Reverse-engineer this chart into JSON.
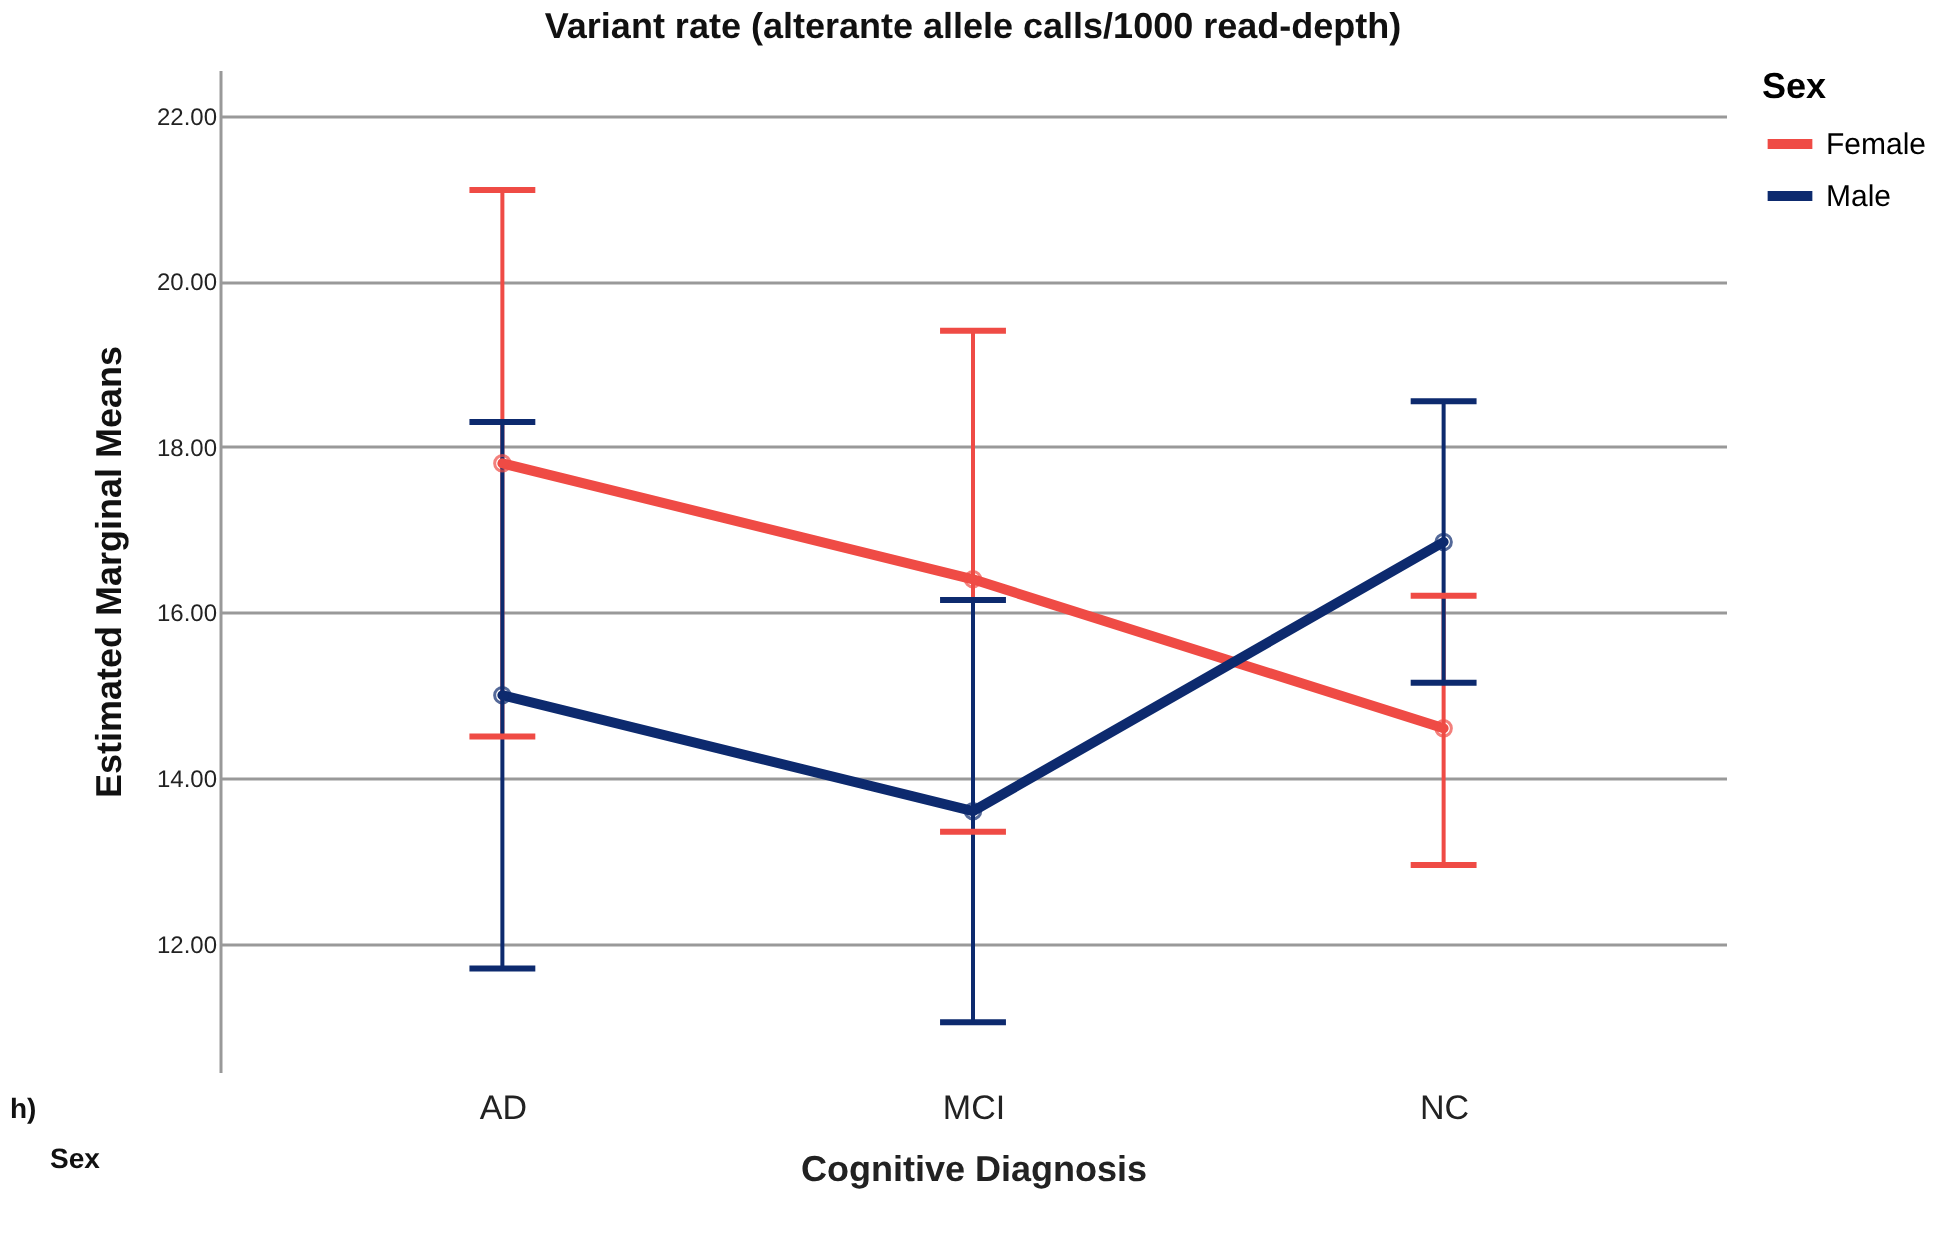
{
  "chart_data": {
    "type": "line",
    "title": "Variant rate (alterante allele calls/1000 read-depth)",
    "xlabel": "Cognitive Diagnosis",
    "ylabel": "Estimated Marginal Means",
    "legend_title": "Sex",
    "categories": [
      "AD",
      "MCI",
      "NC"
    ],
    "series": [
      {
        "name": "Female",
        "color": "#ef4b45",
        "values": [
          17.8,
          16.4,
          14.6
        ],
        "errors": [
          [
            14.5,
            21.1
          ],
          [
            13.35,
            19.4
          ],
          [
            12.95,
            16.2
          ]
        ]
      },
      {
        "name": "Male",
        "color": "#0d2a6e",
        "values": [
          15.0,
          13.6,
          16.85
        ],
        "errors": [
          [
            11.7,
            18.3
          ],
          [
            11.05,
            16.15
          ],
          [
            15.15,
            18.55
          ]
        ]
      }
    ],
    "ylim": [
      10.45,
      22.55
    ],
    "yticks": [
      {
        "value": 12,
        "label": "12.00"
      },
      {
        "value": 14,
        "label": "14.00"
      },
      {
        "value": 16,
        "label": "16.00"
      },
      {
        "value": 18,
        "label": "18.00"
      },
      {
        "value": 20,
        "label": "20.00"
      },
      {
        "value": 22,
        "label": "22.00"
      }
    ],
    "grid": "y",
    "legend": "top right",
    "marker": "circle",
    "line_style": "solid",
    "annotations": [
      "h)",
      "Sex"
    ]
  }
}
